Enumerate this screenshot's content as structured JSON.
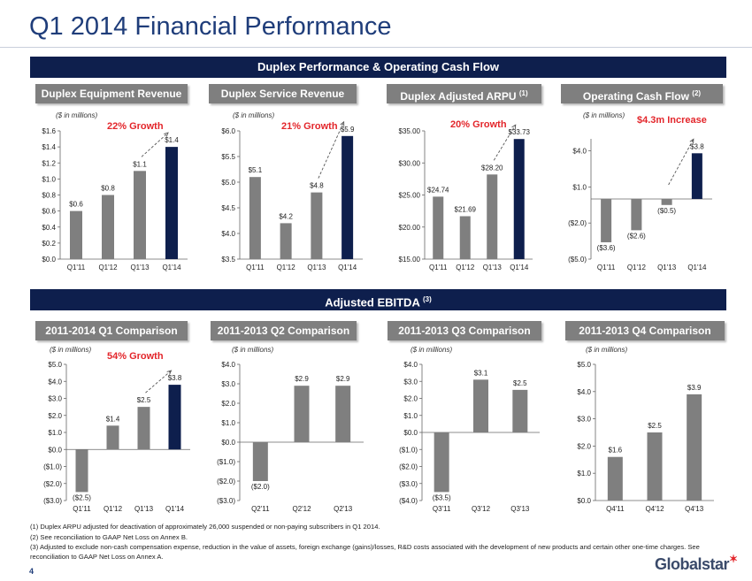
{
  "page": {
    "title": "Q1 2014 Financial Performance",
    "section1_band": "Duplex Performance & Operating Cash Flow",
    "section2_band": "Adjusted EBITDA",
    "section2_band_note": "(3)",
    "page_number": "4",
    "logo_text": "Globalstar",
    "footnotes": [
      "(1) Duplex ARPU adjusted for deactivation of approximately 26,000 suspended or non-paying subscribers in Q1 2014.",
      "(2) See reconciliation to GAAP Net Loss on Annex B.",
      "(3) Adjusted to exclude non-cash compensation expense, reduction in the value of assets, foreign exchange (gains)/losses, R&D costs associated with the development of new products and certain other one-time charges. See reconciliation to GAAP Net Loss on Annex A."
    ],
    "colors": {
      "bar": "#7f7f7f",
      "highlight_bar": "#0e1f4d",
      "band": "#0e1f4d",
      "growth": "#e3262b",
      "title": "#1f3d7a"
    }
  },
  "chart_data": [
    {
      "type": "bar",
      "tab": "Duplex Equipment Revenue",
      "tab_note": "",
      "units": "($ in millions)",
      "growth": "22% Growth",
      "categories": [
        "Q1'11",
        "Q1'12",
        "Q1'13",
        "Q1'14"
      ],
      "values": [
        0.6,
        0.8,
        1.1,
        1.4
      ],
      "labels": [
        "$0.6",
        "$0.8",
        "$1.1",
        "$1.4"
      ],
      "ylim": [
        0,
        1.6
      ],
      "yticks": [
        0,
        0.2,
        0.4,
        0.6,
        0.8,
        1.0,
        1.2,
        1.4,
        1.6
      ],
      "yticklabels": [
        "$0.0",
        "$0.2",
        "$0.4",
        "$0.6",
        "$0.8",
        "$1.0",
        "$1.2",
        "$1.4",
        "$1.6"
      ],
      "highlight_last": true,
      "arrow": true
    },
    {
      "type": "bar",
      "tab": "Duplex Service Revenue",
      "tab_note": "",
      "units": "($ in millions)",
      "growth": "21% Growth",
      "categories": [
        "Q1'11",
        "Q1'12",
        "Q1'13",
        "Q1'14"
      ],
      "values": [
        5.1,
        4.2,
        4.8,
        5.9
      ],
      "labels": [
        "$5.1",
        "$4.2",
        "$4.8",
        "$5.9"
      ],
      "ylim": [
        3.5,
        6.0
      ],
      "yticks": [
        3.5,
        4.0,
        4.5,
        5.0,
        5.5,
        6.0
      ],
      "yticklabels": [
        "$3.5",
        "$4.0",
        "$4.5",
        "$5.0",
        "$5.5",
        "$6.0"
      ],
      "highlight_last": true,
      "arrow": true
    },
    {
      "type": "bar",
      "tab": "Duplex Adjusted ARPU",
      "tab_note": "(1)",
      "units": "",
      "growth": "20% Growth",
      "categories": [
        "Q1'11",
        "Q1'12",
        "Q1'13",
        "Q1'14"
      ],
      "values": [
        24.74,
        21.69,
        28.2,
        33.73
      ],
      "labels": [
        "$24.74",
        "$21.69",
        "$28.20",
        "$33.73"
      ],
      "ylim": [
        15,
        35
      ],
      "yticks": [
        15,
        20,
        25,
        30,
        35
      ],
      "yticklabels": [
        "$15.00",
        "$20.00",
        "$25.00",
        "$30.00",
        "$35.00"
      ],
      "highlight_last": true,
      "arrow": true
    },
    {
      "type": "bar",
      "tab": "Operating Cash Flow",
      "tab_note": "(2)",
      "units": "($ in millions)",
      "growth": "$4.3m Increase",
      "categories": [
        "Q1'11",
        "Q1'12",
        "Q1'13",
        "Q1'14"
      ],
      "values": [
        -3.6,
        -2.6,
        -0.5,
        3.8
      ],
      "labels": [
        "($3.6)",
        "($2.6)",
        "($0.5)",
        "$3.8"
      ],
      "ylim": [
        -5,
        5
      ],
      "yticks": [
        -5,
        -2,
        1,
        4
      ],
      "yticklabels": [
        "($5.0)",
        "($2.0)",
        "$1.0",
        "$4.0"
      ],
      "highlight_last": true,
      "arrow": true
    },
    {
      "type": "bar",
      "tab": "2011-2014 Q1 Comparison",
      "tab_note": "",
      "units": "($ in millions)",
      "growth": "54% Growth",
      "categories": [
        "Q1'11",
        "Q1'12",
        "Q1'13",
        "Q1'14"
      ],
      "values": [
        -2.5,
        1.4,
        2.5,
        3.8
      ],
      "labels": [
        "($2.5)",
        "$1.4",
        "$2.5",
        "$3.8"
      ],
      "ylim": [
        -3,
        5
      ],
      "yticks": [
        -3,
        -2,
        -1,
        0,
        1,
        2,
        3,
        4,
        5
      ],
      "yticklabels": [
        "($3.0)",
        "($2.0)",
        "($1.0)",
        "$0.0",
        "$1.0",
        "$2.0",
        "$3.0",
        "$4.0",
        "$5.0"
      ],
      "highlight_last": true,
      "arrow": true
    },
    {
      "type": "bar",
      "tab": "2011-2013 Q2 Comparison",
      "tab_note": "",
      "units": "($ in millions)",
      "growth": "",
      "categories": [
        "Q2'11",
        "Q2'12",
        "Q2'13"
      ],
      "values": [
        -2.0,
        2.9,
        2.9
      ],
      "labels": [
        "($2.0)",
        "$2.9",
        "$2.9"
      ],
      "ylim": [
        -3,
        4
      ],
      "yticks": [
        -3,
        -2,
        -1,
        0,
        1,
        2,
        3,
        4
      ],
      "yticklabels": [
        "($3.0)",
        "($2.0)",
        "($1.0)",
        "$0.0",
        "$1.0",
        "$2.0",
        "$3.0",
        "$4.0"
      ],
      "highlight_last": false,
      "arrow": false
    },
    {
      "type": "bar",
      "tab": "2011-2013 Q3 Comparison",
      "tab_note": "",
      "units": "($ in millions)",
      "growth": "",
      "categories": [
        "Q3'11",
        "Q3'12",
        "Q3'13"
      ],
      "values": [
        -3.5,
        3.1,
        2.5
      ],
      "labels": [
        "($3.5)",
        "$3.1",
        "$2.5"
      ],
      "ylim": [
        -4,
        4
      ],
      "yticks": [
        -4,
        -3,
        -2,
        -1,
        0,
        1,
        2,
        3,
        4
      ],
      "yticklabels": [
        "($4.0)",
        "($3.0)",
        "($2.0)",
        "($1.0)",
        "$0.0",
        "$1.0",
        "$2.0",
        "$3.0",
        "$4.0"
      ],
      "highlight_last": false,
      "arrow": false
    },
    {
      "type": "bar",
      "tab": "2011-2013 Q4 Comparison",
      "tab_note": "",
      "units": "($ in millions)",
      "growth": "",
      "categories": [
        "Q4'11",
        "Q4'12",
        "Q4'13"
      ],
      "values": [
        1.6,
        2.5,
        3.9
      ],
      "labels": [
        "$1.6",
        "$2.5",
        "$3.9"
      ],
      "ylim": [
        0,
        5
      ],
      "yticks": [
        0,
        1,
        2,
        3,
        4,
        5
      ],
      "yticklabels": [
        "$0.0",
        "$1.0",
        "$2.0",
        "$3.0",
        "$4.0",
        "$5.0"
      ],
      "highlight_last": false,
      "arrow": false
    }
  ]
}
